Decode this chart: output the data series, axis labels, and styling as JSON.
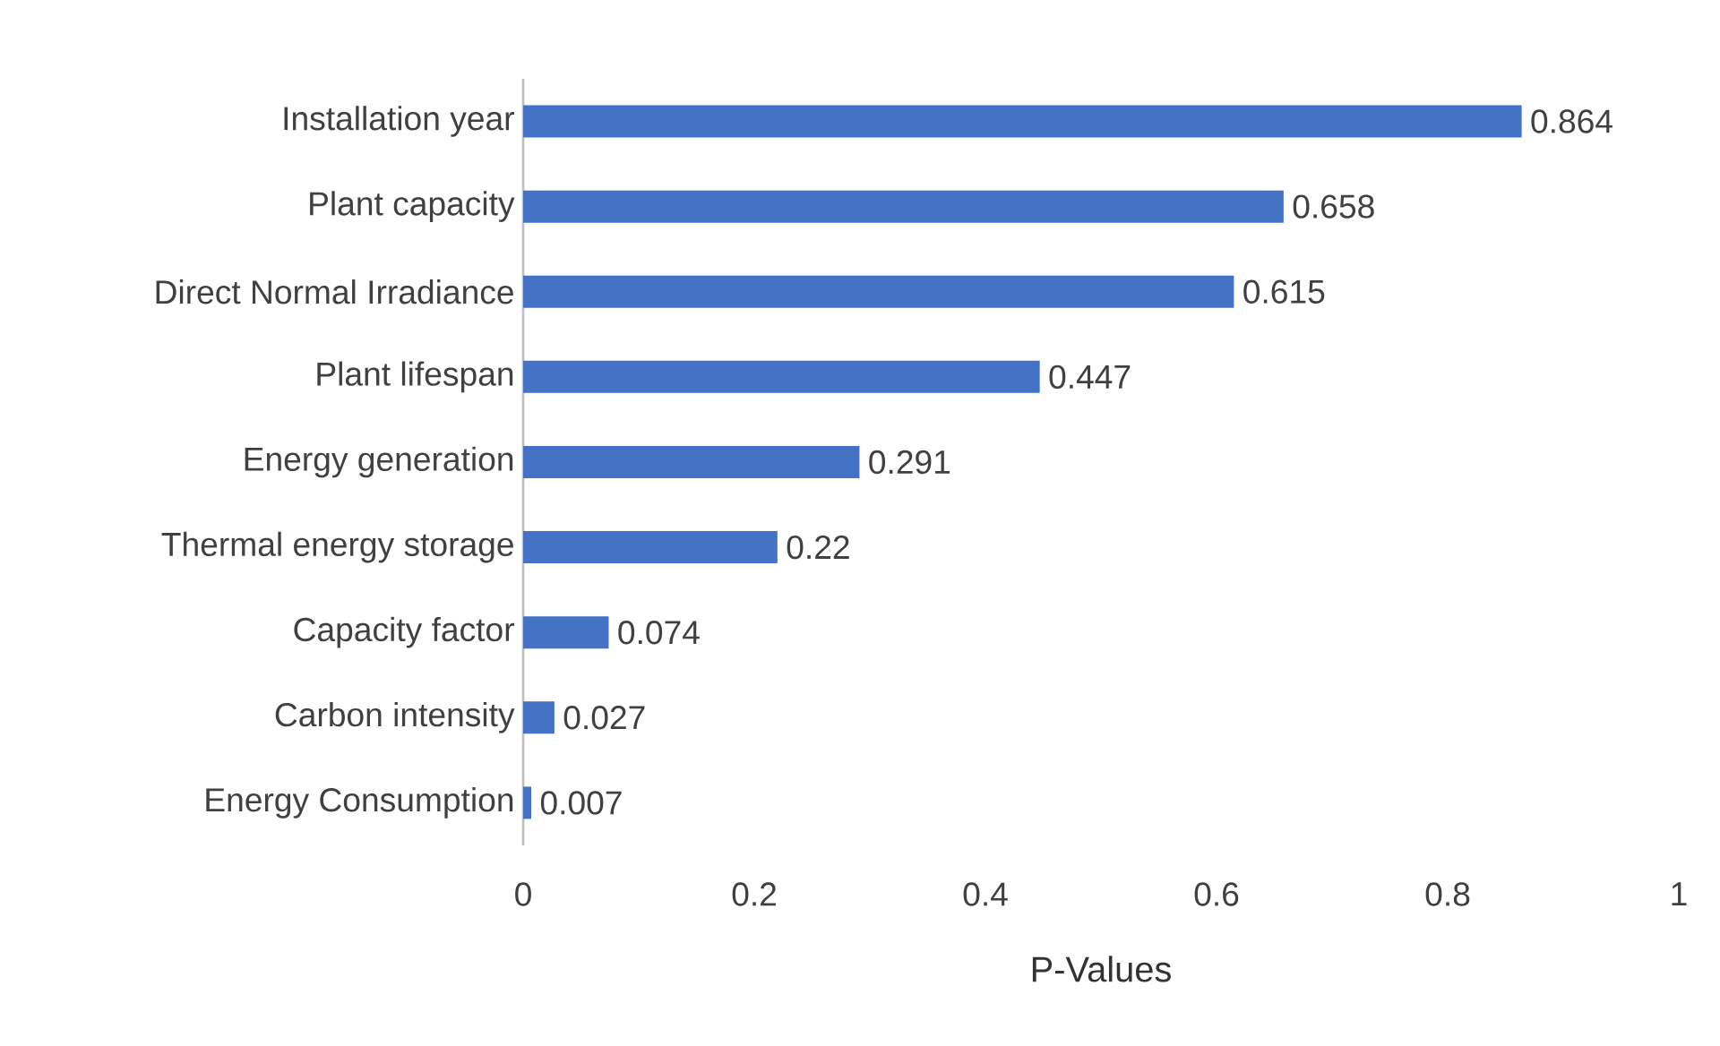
{
  "chart_data": {
    "type": "bar",
    "orientation": "horizontal",
    "xlabel": "P-Values",
    "categories": [
      "Installation year",
      "Plant capacity",
      "Direct Normal Irradiance",
      "Plant lifespan",
      "Energy generation",
      "Thermal energy storage",
      "Capacity factor",
      "Carbon intensity",
      "Energy Consumption"
    ],
    "values": [
      0.864,
      0.658,
      0.615,
      0.447,
      0.291,
      0.22,
      0.074,
      0.027,
      0.007
    ],
    "color": "#4472c4",
    "xlim": [
      0,
      1
    ],
    "xticks": [
      0,
      0.2,
      0.4,
      0.6,
      0.8,
      1
    ],
    "data_labels": true
  }
}
